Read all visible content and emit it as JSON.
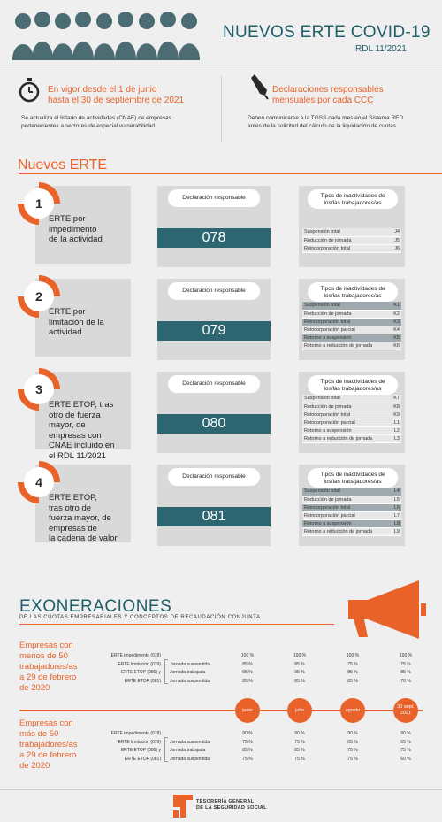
{
  "header": {
    "title": "NUEVOS ERTE COVID-19",
    "subtitle": "RDL 11/2021"
  },
  "info": {
    "left_highlight": "En vigor desde el 1 de junio hasta el 30 de septiembre de 2021",
    "left_highlight_lines": [
      "En vigor desde el 1 de junio",
      "hasta el 30 de septiembre de 2021"
    ],
    "left_text_lines": [
      "Se actualiza el listado de actividades (CNAE) de empresas",
      "pertenecientes a sectores de especial vulnerabilidad"
    ],
    "right_highlight_lines": [
      "Declaraciones responsables",
      "mensuales por cada CCC"
    ],
    "right_text_lines": [
      "Deben comunicarse a la TGSS cada mes en el Sistema RED",
      "antes de la solicitud del cálculo de la liquidación de cuotas"
    ]
  },
  "section_title": "Nuevos ERTE",
  "erte": [
    {
      "num": "1",
      "label_lines": [
        "ERTE por",
        "impedimento",
        "de la actividad"
      ],
      "decl_label": "Declaración responsable",
      "code": "078",
      "tipos_lines": [
        "Tipos de inactividades de",
        "los/las trabajadores/as"
      ],
      "rows": [
        {
          "name": "Suspensión total",
          "code": "J4",
          "dark": false
        },
        {
          "name": "Reducción de jornada",
          "code": "J5",
          "dark": false
        },
        {
          "name": "Reincorporación total",
          "code": "J6",
          "dark": false
        }
      ]
    },
    {
      "num": "2",
      "label_lines": [
        "ERTE por",
        "limitación de la",
        "actividad"
      ],
      "decl_label": "Declaración responsable",
      "code": "079",
      "tipos_lines": [
        "Tipos de inactividades de",
        "los/las trabajadores/as"
      ],
      "rows": [
        {
          "name": "Suspensión total",
          "code": "K1",
          "dark": true
        },
        {
          "name": "Reducción de jornada",
          "code": "K2",
          "dark": false
        },
        {
          "name": "Reincorporación total",
          "code": "K3",
          "dark": true
        },
        {
          "name": "Reincorporación parcial",
          "code": "K4",
          "dark": false
        },
        {
          "name": "Retorno a suspensión",
          "code": "K5",
          "dark": true
        },
        {
          "name": "Retorno a reducción de jornada",
          "code": "K6",
          "dark": false
        }
      ]
    },
    {
      "num": "3",
      "label_lines": [
        "ERTE ETOP,  tras",
        "otro de fuerza",
        "mayor, de",
        "empresas con",
        "CNAE incluido en",
        "el RDL 11/2021"
      ],
      "decl_label": "Declaración responsable",
      "code": "080",
      "tipos_lines": [
        "Tipos de inactividades de",
        "los/las trabajadores/as"
      ],
      "rows": [
        {
          "name": "Suspensión total",
          "code": "K7",
          "dark": false
        },
        {
          "name": "Reducción de jornada",
          "code": "K8",
          "dark": false
        },
        {
          "name": "Reincorporación total",
          "code": "K9",
          "dark": false
        },
        {
          "name": "Reincorporación parcial",
          "code": "L1",
          "dark": false
        },
        {
          "name": "Retorno a suspensión",
          "code": "L2",
          "dark": false
        },
        {
          "name": "Retorno a reducción de jornada",
          "code": "L3",
          "dark": false
        }
      ]
    },
    {
      "num": "4",
      "label_lines": [
        "ERTE ETOP,",
        "tras otro de",
        "fuerza mayor, de",
        "empresas de",
        "la cadena de valor"
      ],
      "decl_label": "Declaración responsable",
      "code": "081",
      "tipos_lines": [
        "Tipos de inactividades de",
        "los/las trabajadores/as"
      ],
      "rows": [
        {
          "name": "Suspensión total",
          "code": "L4",
          "dark": true
        },
        {
          "name": "Reducción de jornada",
          "code": "L5",
          "dark": false
        },
        {
          "name": "Reincorporación total",
          "code": "L6",
          "dark": true
        },
        {
          "name": "Reincorporación parcial",
          "code": "L7",
          "dark": false
        },
        {
          "name": "Retorno a suspensión",
          "code": "L8",
          "dark": true
        },
        {
          "name": "Retorno a reducción de jornada",
          "code": "L9",
          "dark": false
        }
      ]
    }
  ],
  "exoneraciones": {
    "title": "EXONERACIONES",
    "subtitle": "DE LAS CUOTAS EMPRESARIALES  Y CONCEPTOS DE RECAUDACIÓN CONJUNTA",
    "months": [
      {
        "label": "junio"
      },
      {
        "label": "julio"
      },
      {
        "label": "agosto"
      },
      {
        "label": "30 sept.\n2021"
      }
    ],
    "groups": [
      {
        "label_lines": [
          "Empresas con",
          "menos de 50",
          "trabajadores/as",
          "a 29 de febrero",
          "de 2020"
        ],
        "rows": [
          {
            "left": "ERTE impedimento (078)",
            "mid": "",
            "values": [
              "100 %",
              "100 %",
              "100 %",
              "100 %"
            ]
          },
          {
            "left": "ERTE limitación (079)",
            "mid": "Jornada suspendida",
            "values": [
              "85 %",
              "85 %",
              "75 %",
              "75 %"
            ]
          },
          {
            "left": "ERTE ETOP (080) y",
            "mid": "Jornada trabajada",
            "values": [
              "95 %",
              "95 %",
              "85 %",
              "85 %"
            ]
          },
          {
            "left": "ERTE ETOP (081)",
            "mid": "Jornada suspendida",
            "values": [
              "85 %",
              "85 %",
              "85 %",
              "70 %"
            ]
          }
        ]
      },
      {
        "label_lines": [
          "Empresas con",
          "más de 50",
          "trabajadores/as",
          "a 29 de febrero",
          "de 2020"
        ],
        "rows": [
          {
            "left": "ERTE impedimento (078)",
            "mid": "",
            "values": [
              "90 %",
              "90 %",
              "90 %",
              "90 %"
            ]
          },
          {
            "left": "ERTE limitación (079)",
            "mid": "Jornada suspendida",
            "values": [
              "75 %",
              "75 %",
              "65 %",
              "65 %"
            ]
          },
          {
            "left": "ERTE ETOP (080) y",
            "mid": "Jornada trabajada",
            "values": [
              "85 %",
              "85 %",
              "75 %",
              "75 %"
            ]
          },
          {
            "left": "ERTE ETOP (081)",
            "mid": "Jornada suspendida",
            "values": [
              "75 %",
              "75 %",
              "75 %",
              "60 %"
            ]
          }
        ]
      }
    ]
  },
  "footer": {
    "org_lines": [
      "TESORERÍA GENERAL",
      "DE LA SEGURIDAD SOCIAL"
    ]
  },
  "colors": {
    "accent": "#e8622a",
    "teal": "#2d6670",
    "title": "#1f5f6a"
  }
}
